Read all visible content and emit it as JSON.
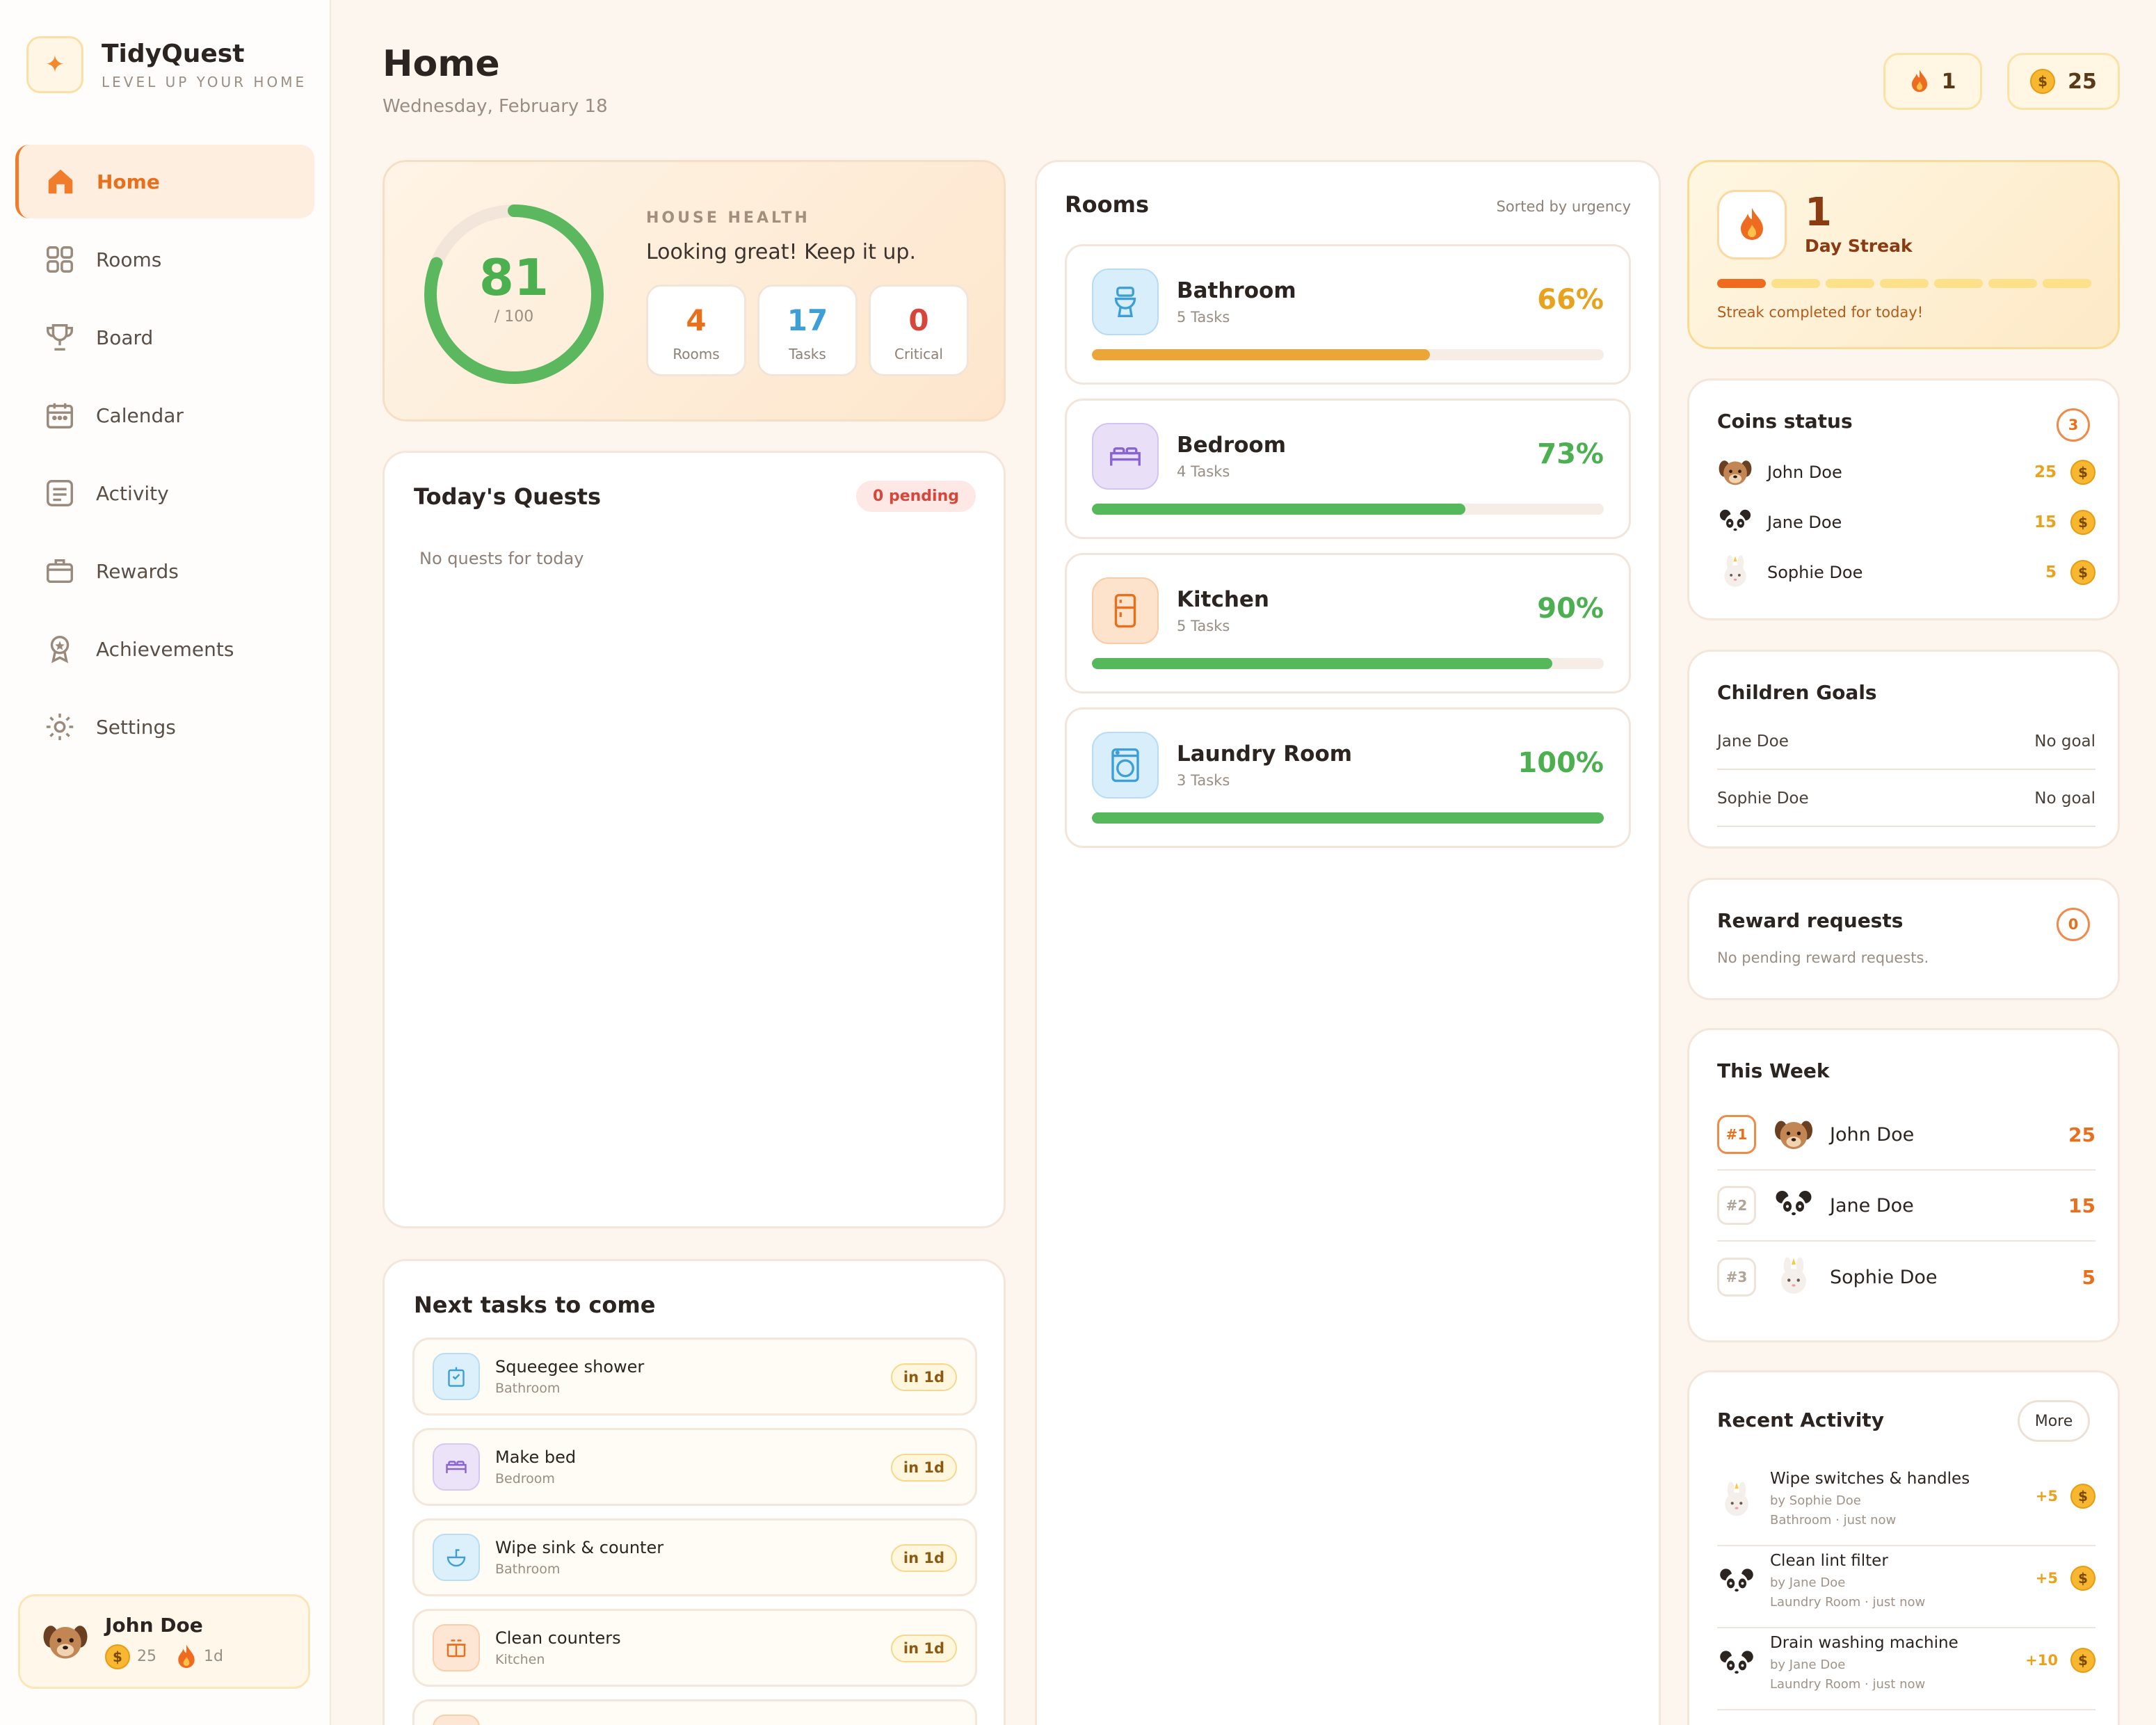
{
  "brand": {
    "name": "TidyQuest",
    "tagline": "LEVEL UP YOUR HOME",
    "logo_icon": "sparkle-icon"
  },
  "nav": [
    {
      "label": "Home",
      "icon": "home-icon",
      "active": true
    },
    {
      "label": "Rooms",
      "icon": "grid-icon"
    },
    {
      "label": "Board",
      "icon": "trophy-icon"
    },
    {
      "label": "Calendar",
      "icon": "calendar-icon"
    },
    {
      "label": "Activity",
      "icon": "list-icon"
    },
    {
      "label": "Rewards",
      "icon": "gift-box-icon"
    },
    {
      "label": "Achievements",
      "icon": "medal-icon"
    },
    {
      "label": "Settings",
      "icon": "gear-icon"
    }
  ],
  "user": {
    "name": "John Doe",
    "coins": "25",
    "streak": "1d"
  },
  "header": {
    "title": "Home",
    "date": "Wednesday, February 18",
    "streak": "1",
    "coins": "25"
  },
  "health": {
    "label": "HOUSE HEALTH",
    "score": "81",
    "score_value": 81,
    "max": "/ 100",
    "message": "Looking great! Keep it up.",
    "stats": [
      {
        "value": "4",
        "label": "Rooms",
        "color": "#e8701d"
      },
      {
        "value": "17",
        "label": "Tasks",
        "color": "#3d9fd8"
      },
      {
        "value": "0",
        "label": "Critical",
        "color": "#d6463a"
      }
    ]
  },
  "quests": {
    "title": "Today's Quests",
    "badge": "0 pending",
    "empty": "No quests for today"
  },
  "next_tasks": {
    "title": "Next tasks to come",
    "items": [
      {
        "name": "Squeegee shower",
        "room": "Bathroom",
        "due": "in 1d",
        "icon": "squeegee-icon",
        "bg": "#dcf0fb",
        "fg": "#3d9fd8"
      },
      {
        "name": "Make bed",
        "room": "Bedroom",
        "due": "in 1d",
        "icon": "bed-icon",
        "bg": "#ece3f9",
        "fg": "#8a63d2"
      },
      {
        "name": "Wipe sink & counter",
        "room": "Bathroom",
        "due": "in 1d",
        "icon": "sink-icon",
        "bg": "#dcf0fb",
        "fg": "#3d9fd8"
      },
      {
        "name": "Clean counters",
        "room": "Kitchen",
        "due": "in 1d",
        "icon": "counter-icon",
        "bg": "#fde6d4",
        "fg": "#e8701d"
      }
    ]
  },
  "rooms": {
    "title": "Rooms",
    "sort": "Sorted by urgency",
    "items": [
      {
        "name": "Bathroom",
        "tasks": "5 Tasks",
        "pct": "66%",
        "value": 0.66,
        "icon": "toilet-icon",
        "bg": "#d9eefb",
        "fg": "#3d9fd8",
        "color": "#eba63a"
      },
      {
        "name": "Bedroom",
        "tasks": "4 Tasks",
        "pct": "73%",
        "value": 0.73,
        "icon": "bed-icon",
        "bg": "#e9e0f8",
        "fg": "#8a63d2",
        "color": "#55b95c"
      },
      {
        "name": "Kitchen",
        "tasks": "5 Tasks",
        "pct": "90%",
        "value": 0.9,
        "icon": "fridge-icon",
        "bg": "#fde3cc",
        "fg": "#e8701d",
        "color": "#55b95c"
      },
      {
        "name": "Laundry Room",
        "tasks": "3 Tasks",
        "pct": "100%",
        "value": 1.0,
        "icon": "washer-icon",
        "bg": "#d9eefb",
        "fg": "#3d9fd8",
        "color": "#55b95c"
      }
    ]
  },
  "streak": {
    "value": "1",
    "label": "Day Streak",
    "note": "Streak completed for today!",
    "filled_segments": 1,
    "total_segments": 7
  },
  "coins_status": {
    "title": "Coins status",
    "count": "3",
    "members": [
      {
        "name": "John Doe",
        "coins": "25",
        "avatar": "dog-avatar-icon"
      },
      {
        "name": "Jane Doe",
        "coins": "15",
        "avatar": "panda-avatar-icon"
      },
      {
        "name": "Sophie Doe",
        "coins": "5",
        "avatar": "bunny-avatar-icon"
      }
    ]
  },
  "goals": {
    "title": "Children Goals",
    "rows": [
      {
        "name": "Jane Doe",
        "goal": "No goal"
      },
      {
        "name": "Sophie Doe",
        "goal": "No goal"
      }
    ]
  },
  "reward_requests": {
    "title": "Reward requests",
    "count": "0",
    "empty": "No pending reward requests."
  },
  "week": {
    "title": "This Week",
    "ranks": [
      {
        "rank": "#1",
        "name": "John Doe",
        "score": "25",
        "avatar": "dog-avatar-icon"
      },
      {
        "rank": "#2",
        "name": "Jane Doe",
        "score": "15",
        "avatar": "panda-avatar-icon"
      },
      {
        "rank": "#3",
        "name": "Sophie Doe",
        "score": "5",
        "avatar": "bunny-avatar-icon"
      }
    ]
  },
  "recent": {
    "title": "Recent Activity",
    "more": "More",
    "items": [
      {
        "title": "Wipe switches & handles",
        "by": "by Sophie Doe",
        "meta": "Bathroom · just now",
        "points": "+5",
        "avatar": "bunny-avatar-icon"
      },
      {
        "title": "Clean lint filter",
        "by": "by Jane Doe",
        "meta": "Laundry Room · just now",
        "points": "+5",
        "avatar": "panda-avatar-icon"
      },
      {
        "title": "Drain washing machine",
        "by": "by Jane Doe",
        "meta": "Laundry Room · just now",
        "points": "+10",
        "avatar": "panda-avatar-icon"
      }
    ]
  },
  "colors": {
    "accent": "#e8701d",
    "green": "#4caf50",
    "coin": "#f7b731"
  }
}
